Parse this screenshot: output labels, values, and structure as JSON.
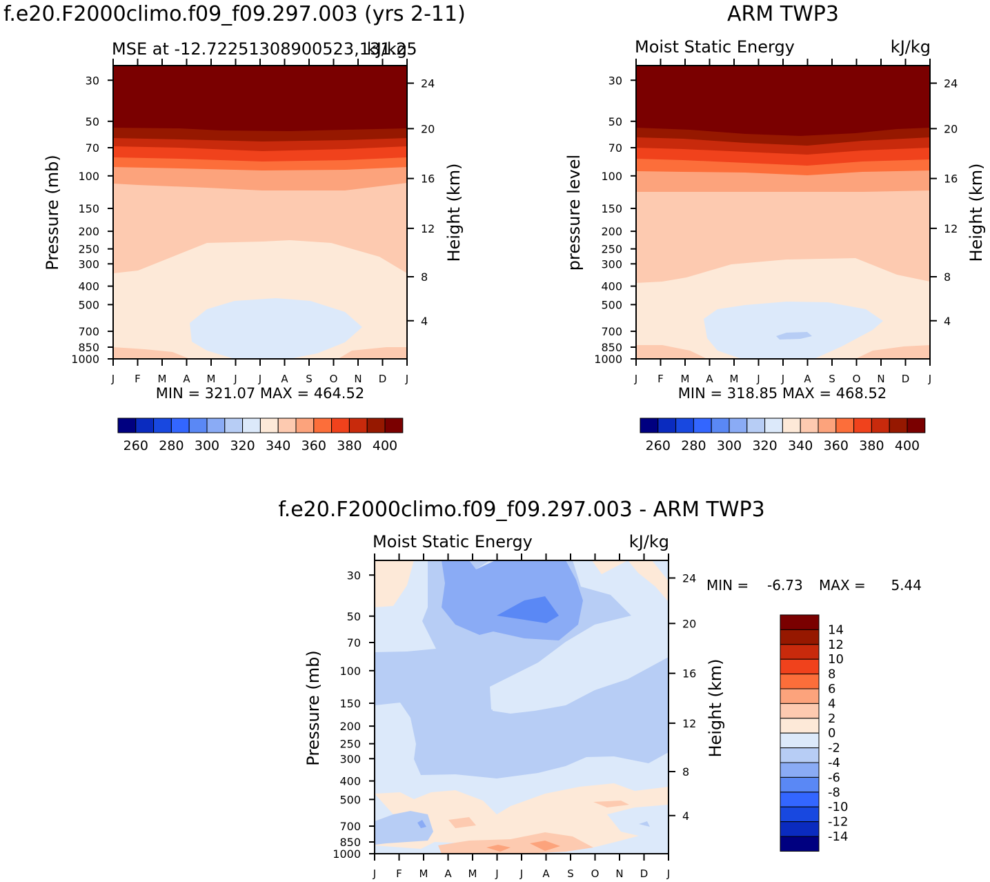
{
  "palette": {
    "mse": [
      "#000080",
      "#0a2bbf",
      "#1848e0",
      "#3366ff",
      "#5a88f5",
      "#8aabf5",
      "#b7cdf5",
      "#dce9fa",
      "#fde9d8",
      "#fdcab0",
      "#fca37c",
      "#fc6e3a",
      "#f0421c",
      "#c82a0c",
      "#961800",
      "#7a0000"
    ],
    "diff": [
      "#000080",
      "#0a2bbf",
      "#1848e0",
      "#3366ff",
      "#5a88f5",
      "#8aabf5",
      "#b7cdf5",
      "#dce9fa",
      "#fde9d8",
      "#fdcab0",
      "#fca37c",
      "#fc6e3a",
      "#f0421c",
      "#c82a0c",
      "#961800",
      "#7a0000"
    ]
  },
  "chart_data": [
    {
      "type": "heatmap",
      "id": "model",
      "title": "f.e20.F2000climo.f09_f09.297.003 (yrs 2-11)",
      "subtitle_left": "MSE at -12.72251308900523,131.25",
      "subtitle_right": "kJ/kg",
      "ylabel": "Pressure (mb)",
      "ylabel_right": "Height (km)",
      "x_ticks": [
        "J",
        "F",
        "M",
        "A",
        "M",
        "J",
        "J",
        "A",
        "S",
        "O",
        "N",
        "D",
        "J"
      ],
      "y_ticks": [
        "30",
        "50",
        "70",
        "100",
        "150",
        "200",
        "250",
        "300",
        "400",
        "500",
        "700",
        "850",
        "1000"
      ],
      "y_ticks_right": [
        "24",
        "20",
        "16",
        "12",
        "8",
        "4"
      ],
      "stats": "MIN = 321.07 MAX = 464.52",
      "colorbar_labels": [
        "260",
        "280",
        "300",
        "320",
        "340",
        "360",
        "380",
        "400"
      ],
      "min": 321.07,
      "max": 464.52
    },
    {
      "type": "heatmap",
      "id": "obs",
      "title": "ARM TWP3",
      "subtitle_left": "Moist Static Energy",
      "subtitle_right": "kJ/kg",
      "ylabel": "pressure level",
      "ylabel_right": "Height (km)",
      "x_ticks": [
        "J",
        "F",
        "M",
        "A",
        "M",
        "J",
        "J",
        "A",
        "S",
        "O",
        "N",
        "D",
        "J"
      ],
      "y_ticks": [
        "30",
        "50",
        "70",
        "100",
        "150",
        "200",
        "250",
        "300",
        "400",
        "500",
        "700",
        "850",
        "1000"
      ],
      "y_ticks_right": [
        "24",
        "20",
        "16",
        "12",
        "8",
        "4"
      ],
      "stats": "MIN = 318.85 MAX = 468.52",
      "colorbar_labels": [
        "260",
        "280",
        "300",
        "320",
        "340",
        "360",
        "380",
        "400"
      ],
      "min": 318.85,
      "max": 468.52
    },
    {
      "type": "heatmap",
      "id": "diff",
      "title": "f.e20.F2000climo.f09_f09.297.003 - ARM TWP3",
      "subtitle_left": "Moist Static Energy",
      "subtitle_right": "kJ/kg",
      "ylabel": "Pressure (mb)",
      "ylabel_right": "Height (km)",
      "x_ticks": [
        "J",
        "F",
        "M",
        "A",
        "M",
        "J",
        "J",
        "A",
        "S",
        "O",
        "N",
        "D",
        "J"
      ],
      "y_ticks": [
        "30",
        "50",
        "70",
        "100",
        "150",
        "200",
        "250",
        "300",
        "400",
        "500",
        "700",
        "850",
        "1000"
      ],
      "y_ticks_right": [
        "24",
        "20",
        "16",
        "12",
        "8",
        "4"
      ],
      "stats_min_label": "MIN =",
      "stats_min_value": "-6.73",
      "stats_max_label": "MAX =",
      "stats_max_value": "5.44",
      "colorbar_labels": [
        "14",
        "12",
        "10",
        "8",
        "6",
        "4",
        "2",
        "0",
        "-2",
        "-4",
        "-6",
        "-8",
        "-10",
        "-12",
        "-14"
      ],
      "min": -6.73,
      "max": 5.44
    }
  ]
}
